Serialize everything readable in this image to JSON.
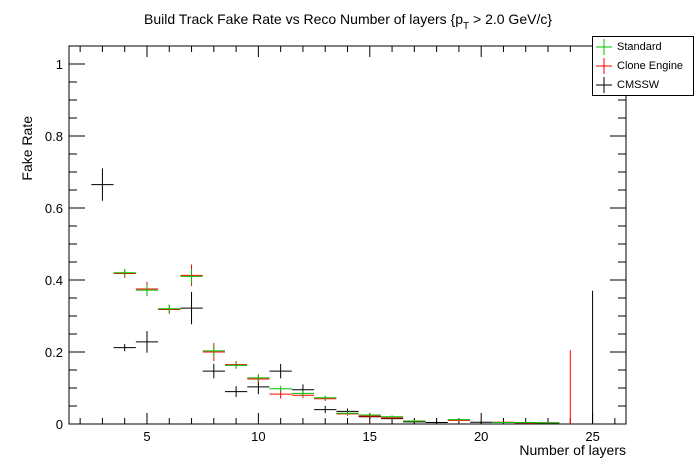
{
  "chart_data": {
    "type": "scatter",
    "title_main": "Build Track Fake Rate vs Reco Number of layers {p",
    "title_sub": "T",
    "title_tail": " > 2.0 GeV/c}",
    "xlabel": "Number of layers",
    "ylabel": "Fake Rate",
    "xlim": [
      1.5,
      26.5
    ],
    "ylim": [
      0,
      1.05
    ],
    "x_ticks": [
      5,
      10,
      15,
      20,
      25
    ],
    "y_ticks": [
      0,
      0.2,
      0.4,
      0.6,
      0.8,
      1
    ],
    "y_tick_labels": [
      "0",
      "0.2",
      "0.4",
      "0.6",
      "0.8",
      "1"
    ],
    "grid": false,
    "legend_position": "top-right",
    "series": [
      {
        "name": "Standard",
        "color": "#00c000",
        "points": [
          {
            "x": 4,
            "y": 0.42,
            "err": 0.01
          },
          {
            "x": 5,
            "y": 0.372,
            "err": 0.015
          },
          {
            "x": 6,
            "y": 0.32,
            "err": 0.012
          },
          {
            "x": 7,
            "y": 0.41,
            "err": 0.02
          },
          {
            "x": 8,
            "y": 0.203,
            "err": 0.015
          },
          {
            "x": 9,
            "y": 0.163,
            "err": 0.01
          },
          {
            "x": 10,
            "y": 0.128,
            "err": 0.01
          },
          {
            "x": 11,
            "y": 0.098,
            "err": 0.008
          },
          {
            "x": 12,
            "y": 0.085,
            "err": 0.008
          },
          {
            "x": 13,
            "y": 0.073,
            "err": 0.006
          },
          {
            "x": 14,
            "y": 0.03,
            "err": 0.005
          },
          {
            "x": 15,
            "y": 0.025,
            "err": 0.004
          },
          {
            "x": 16,
            "y": 0.02,
            "err": 0.004
          },
          {
            "x": 17,
            "y": 0.008,
            "err": 0.003
          },
          {
            "x": 19,
            "y": 0.012,
            "err": 0.003
          },
          {
            "x": 21,
            "y": 0.004,
            "err": 0.002
          },
          {
            "x": 22,
            "y": 0.004,
            "err": 0.002
          },
          {
            "x": 23,
            "y": 0.003,
            "err": 0.002
          }
        ]
      },
      {
        "name": "Clone Engine",
        "color": "#ff0000",
        "points": [
          {
            "x": 4,
            "y": 0.418,
            "err": 0.012
          },
          {
            "x": 5,
            "y": 0.375,
            "err": 0.02
          },
          {
            "x": 6,
            "y": 0.318,
            "err": 0.012
          },
          {
            "x": 7,
            "y": 0.413,
            "err": 0.03
          },
          {
            "x": 8,
            "y": 0.2,
            "err": 0.025
          },
          {
            "x": 9,
            "y": 0.165,
            "err": 0.01
          },
          {
            "x": 10,
            "y": 0.125,
            "err": 0.012
          },
          {
            "x": 11,
            "y": 0.083,
            "err": 0.012
          },
          {
            "x": 12,
            "y": 0.08,
            "err": 0.008
          },
          {
            "x": 13,
            "y": 0.07,
            "err": 0.006
          },
          {
            "x": 14,
            "y": 0.028,
            "err": 0.005
          },
          {
            "x": 15,
            "y": 0.022,
            "err": 0.004
          },
          {
            "x": 16,
            "y": 0.017,
            "err": 0.004
          },
          {
            "x": 17,
            "y": 0.008,
            "err": 0.003
          },
          {
            "x": 19,
            "y": 0.01,
            "err": 0.003
          },
          {
            "x": 21,
            "y": 0.005,
            "err": 0.002
          },
          {
            "x": 22,
            "y": 0.003,
            "err": 0.002
          },
          {
            "x": 23,
            "y": 0.003,
            "err": 0.002
          },
          {
            "x": 24,
            "y": 0.0,
            "err_up": 0.205,
            "err_down": 0.0
          }
        ]
      },
      {
        "name": "CMSSW",
        "color": "#000000",
        "points": [
          {
            "x": 3,
            "y": 0.665,
            "err": 0.045
          },
          {
            "x": 4,
            "y": 0.212,
            "err": 0.01
          },
          {
            "x": 5,
            "y": 0.228,
            "err": 0.03
          },
          {
            "x": 7,
            "y": 0.322,
            "err": 0.045
          },
          {
            "x": 8,
            "y": 0.147,
            "err": 0.02
          },
          {
            "x": 9,
            "y": 0.09,
            "err": 0.015
          },
          {
            "x": 10,
            "y": 0.103,
            "err": 0.02
          },
          {
            "x": 11,
            "y": 0.147,
            "err": 0.02
          },
          {
            "x": 12,
            "y": 0.095,
            "err": 0.015
          },
          {
            "x": 13,
            "y": 0.04,
            "err": 0.01
          },
          {
            "x": 14,
            "y": 0.035,
            "err": 0.008
          },
          {
            "x": 15,
            "y": 0.02,
            "err": 0.005
          },
          {
            "x": 16,
            "y": 0.015,
            "err": 0.005
          },
          {
            "x": 17,
            "y": 0.006,
            "err": 0.004
          },
          {
            "x": 18,
            "y": 0.004,
            "err": 0.003
          },
          {
            "x": 20,
            "y": 0.005,
            "err": 0.003
          },
          {
            "x": 23,
            "y": 0.003,
            "err": 0.002
          },
          {
            "x": 25,
            "y": 0.0,
            "err_up": 0.37,
            "err_down": 0.0
          }
        ]
      }
    ]
  }
}
